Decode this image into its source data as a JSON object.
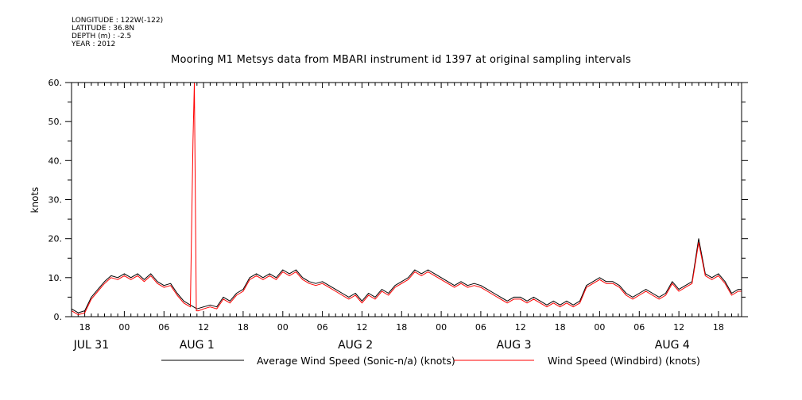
{
  "header": {
    "longitude": "LONGITUDE : 122W(-122)",
    "latitude": "LATITUDE : 36.8N",
    "depth": "DEPTH (m) : -2.5",
    "year": "YEAR : 2012"
  },
  "chart_data": {
    "type": "line",
    "title": "Mooring M1 Metsys data from MBARI instrument id 1397 at original sampling intervals",
    "ylabel": "knots",
    "ylim": [
      0,
      60
    ],
    "yticks": [
      0,
      10,
      20,
      30,
      40,
      50,
      60
    ],
    "ytick_labels": [
      "0.",
      "10.",
      "20.",
      "30.",
      "40.",
      "50.",
      "60."
    ],
    "xlim_hours": [
      -8,
      93.5
    ],
    "xticks": [
      {
        "h": -6,
        "label": "18"
      },
      {
        "h": 0,
        "label": "00"
      },
      {
        "h": 6,
        "label": "06"
      },
      {
        "h": 12,
        "label": "12"
      },
      {
        "h": 18,
        "label": "18"
      },
      {
        "h": 24,
        "label": "00"
      },
      {
        "h": 30,
        "label": "06"
      },
      {
        "h": 36,
        "label": "12"
      },
      {
        "h": 42,
        "label": "18"
      },
      {
        "h": 48,
        "label": "00"
      },
      {
        "h": 54,
        "label": "06"
      },
      {
        "h": 60,
        "label": "12"
      },
      {
        "h": 66,
        "label": "18"
      },
      {
        "h": 72,
        "label": "00"
      },
      {
        "h": 78,
        "label": "06"
      },
      {
        "h": 84,
        "label": "12"
      },
      {
        "h": 90,
        "label": "18"
      }
    ],
    "date_labels": [
      {
        "h": -5,
        "label": "JUL 31"
      },
      {
        "h": 11,
        "label": "AUG  1"
      },
      {
        "h": 35,
        "label": "AUG  2"
      },
      {
        "h": 59,
        "label": "AUG  3"
      },
      {
        "h": 83,
        "label": "AUG  4"
      }
    ],
    "series": [
      {
        "name": "Average Wind Speed (Sonic-n/a) (knots)",
        "color": "#000000",
        "points": [
          [
            -8,
            2
          ],
          [
            -7,
            1
          ],
          [
            -6,
            1.5
          ],
          [
            -5,
            5
          ],
          [
            -4,
            7
          ],
          [
            -3,
            9
          ],
          [
            -2,
            10.5
          ],
          [
            -1,
            10
          ],
          [
            0,
            11
          ],
          [
            1,
            10
          ],
          [
            2,
            11
          ],
          [
            3,
            9.5
          ],
          [
            4,
            11
          ],
          [
            5,
            9
          ],
          [
            6,
            8
          ],
          [
            7,
            8.5
          ],
          [
            8,
            6
          ],
          [
            9,
            4
          ],
          [
            10,
            3
          ],
          [
            11,
            2
          ],
          [
            12,
            2.5
          ],
          [
            13,
            3
          ],
          [
            14,
            2.5
          ],
          [
            15,
            5
          ],
          [
            16,
            4
          ],
          [
            17,
            6
          ],
          [
            18,
            7
          ],
          [
            19,
            10
          ],
          [
            20,
            11
          ],
          [
            21,
            10
          ],
          [
            22,
            11
          ],
          [
            23,
            10
          ],
          [
            24,
            12
          ],
          [
            25,
            11
          ],
          [
            26,
            12
          ],
          [
            27,
            10
          ],
          [
            28,
            9
          ],
          [
            29,
            8.5
          ],
          [
            30,
            9
          ],
          [
            31,
            8
          ],
          [
            32,
            7
          ],
          [
            33,
            6
          ],
          [
            34,
            5
          ],
          [
            35,
            6
          ],
          [
            36,
            4
          ],
          [
            37,
            6
          ],
          [
            38,
            5
          ],
          [
            39,
            7
          ],
          [
            40,
            6
          ],
          [
            41,
            8
          ],
          [
            42,
            9
          ],
          [
            43,
            10
          ],
          [
            44,
            12
          ],
          [
            45,
            11
          ],
          [
            46,
            12
          ],
          [
            47,
            11
          ],
          [
            48,
            10
          ],
          [
            49,
            9
          ],
          [
            50,
            8
          ],
          [
            51,
            9
          ],
          [
            52,
            8
          ],
          [
            53,
            8.5
          ],
          [
            54,
            8
          ],
          [
            55,
            7
          ],
          [
            56,
            6
          ],
          [
            57,
            5
          ],
          [
            58,
            4
          ],
          [
            59,
            5
          ],
          [
            60,
            5
          ],
          [
            61,
            4
          ],
          [
            62,
            5
          ],
          [
            63,
            4
          ],
          [
            64,
            3
          ],
          [
            65,
            4
          ],
          [
            66,
            3
          ],
          [
            67,
            4
          ],
          [
            68,
            3
          ],
          [
            69,
            4
          ],
          [
            70,
            8
          ],
          [
            71,
            9
          ],
          [
            72,
            10
          ],
          [
            73,
            9
          ],
          [
            74,
            9
          ],
          [
            75,
            8
          ],
          [
            76,
            6
          ],
          [
            77,
            5
          ],
          [
            78,
            6
          ],
          [
            79,
            7
          ],
          [
            80,
            6
          ],
          [
            81,
            5
          ],
          [
            82,
            6
          ],
          [
            83,
            9
          ],
          [
            84,
            7
          ],
          [
            85,
            8
          ],
          [
            86,
            9
          ],
          [
            87,
            20
          ],
          [
            88,
            11
          ],
          [
            89,
            10
          ],
          [
            90,
            11
          ],
          [
            91,
            9
          ],
          [
            92,
            6
          ],
          [
            93,
            7
          ],
          [
            93.5,
            7
          ]
        ]
      },
      {
        "name": "Wind Speed (Windbird) (knots)",
        "color": "#ff0000",
        "points": [
          [
            -8,
            1.5
          ],
          [
            -7,
            0.5
          ],
          [
            -6,
            1
          ],
          [
            -5,
            4.5
          ],
          [
            -4,
            6.5
          ],
          [
            -3,
            8.5
          ],
          [
            -2,
            10
          ],
          [
            -1,
            9.5
          ],
          [
            0,
            10.5
          ],
          [
            1,
            9.5
          ],
          [
            2,
            10.5
          ],
          [
            3,
            9
          ],
          [
            4,
            10.5
          ],
          [
            5,
            8.5
          ],
          [
            6,
            7.5
          ],
          [
            7,
            8
          ],
          [
            8,
            5.5
          ],
          [
            9,
            3.5
          ],
          [
            10,
            2.5
          ],
          [
            10.4,
            45
          ],
          [
            10.6,
            60
          ],
          [
            10.9,
            1.5
          ],
          [
            11.2,
            1.5
          ],
          [
            12,
            2
          ],
          [
            13,
            2.5
          ],
          [
            14,
            2
          ],
          [
            15,
            4.5
          ],
          [
            16,
            3.5
          ],
          [
            17,
            5.5
          ],
          [
            18,
            6.5
          ],
          [
            19,
            9.5
          ],
          [
            20,
            10.5
          ],
          [
            21,
            9.5
          ],
          [
            22,
            10.5
          ],
          [
            23,
            9.5
          ],
          [
            24,
            11.5
          ],
          [
            25,
            10.5
          ],
          [
            26,
            11.5
          ],
          [
            27,
            9.5
          ],
          [
            28,
            8.5
          ],
          [
            29,
            8
          ],
          [
            30,
            8.5
          ],
          [
            31,
            7.5
          ],
          [
            32,
            6.5
          ],
          [
            33,
            5.5
          ],
          [
            34,
            4.5
          ],
          [
            35,
            5.5
          ],
          [
            36,
            3.5
          ],
          [
            37,
            5.5
          ],
          [
            38,
            4.5
          ],
          [
            39,
            6.5
          ],
          [
            40,
            5.5
          ],
          [
            41,
            7.5
          ],
          [
            42,
            8.5
          ],
          [
            43,
            9.5
          ],
          [
            44,
            11.5
          ],
          [
            45,
            10.5
          ],
          [
            46,
            11.5
          ],
          [
            47,
            10.5
          ],
          [
            48,
            9.5
          ],
          [
            49,
            8.5
          ],
          [
            50,
            7.5
          ],
          [
            51,
            8.5
          ],
          [
            52,
            7.5
          ],
          [
            53,
            8
          ],
          [
            54,
            7.5
          ],
          [
            55,
            6.5
          ],
          [
            56,
            5.5
          ],
          [
            57,
            4.5
          ],
          [
            58,
            3.5
          ],
          [
            59,
            4.5
          ],
          [
            60,
            4.5
          ],
          [
            61,
            3.5
          ],
          [
            62,
            4.5
          ],
          [
            63,
            3.5
          ],
          [
            64,
            2.5
          ],
          [
            65,
            3.5
          ],
          [
            66,
            2.5
          ],
          [
            67,
            3.5
          ],
          [
            68,
            2.5
          ],
          [
            69,
            3.5
          ],
          [
            70,
            7.5
          ],
          [
            71,
            8.5
          ],
          [
            72,
            9.5
          ],
          [
            73,
            8.5
          ],
          [
            74,
            8.5
          ],
          [
            75,
            7.5
          ],
          [
            76,
            5.5
          ],
          [
            77,
            4.5
          ],
          [
            78,
            5.5
          ],
          [
            79,
            6.5
          ],
          [
            80,
            5.5
          ],
          [
            81,
            4.5
          ],
          [
            82,
            5.5
          ],
          [
            83,
            8.5
          ],
          [
            84,
            6.5
          ],
          [
            85,
            7.5
          ],
          [
            86,
            8.5
          ],
          [
            87,
            19
          ],
          [
            88,
            10.5
          ],
          [
            89,
            9.5
          ],
          [
            90,
            10.5
          ],
          [
            91,
            8.5
          ],
          [
            92,
            5.5
          ],
          [
            93,
            6.5
          ],
          [
            93.5,
            6.5
          ]
        ]
      }
    ]
  }
}
